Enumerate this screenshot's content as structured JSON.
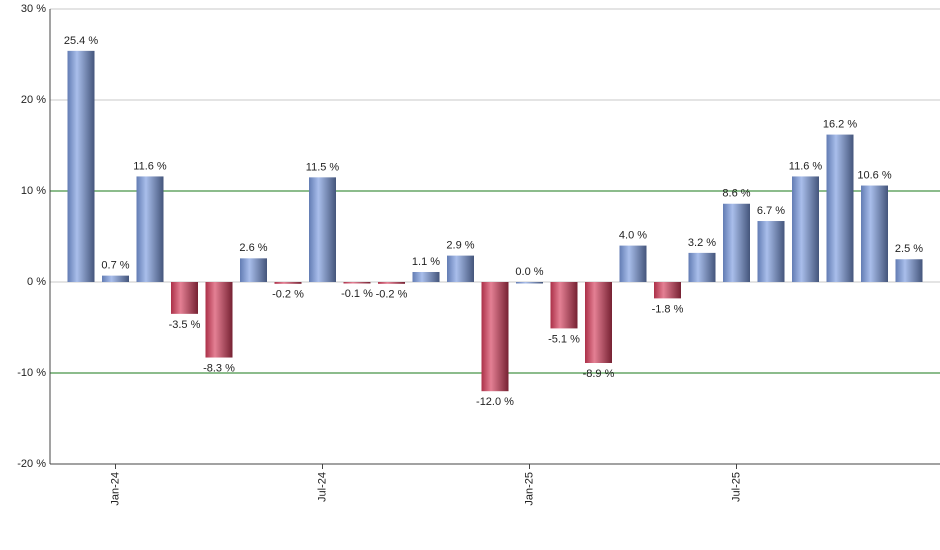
{
  "chart_data": {
    "type": "bar",
    "categories": [
      null,
      "Jan-24",
      null,
      null,
      null,
      null,
      null,
      "Jul-24",
      null,
      null,
      null,
      null,
      null,
      "Jan-25",
      null,
      null,
      null,
      null,
      null,
      "Jul-25",
      null,
      null,
      null,
      null,
      null
    ],
    "values": [
      25.4,
      0.7,
      11.6,
      -3.5,
      -8.3,
      2.6,
      -0.2,
      11.5,
      -0.1,
      -0.2,
      1.1,
      2.9,
      -12.0,
      0.0,
      -5.1,
      -8.9,
      4.0,
      -1.8,
      3.2,
      8.6,
      6.7,
      11.6,
      16.2,
      10.6,
      2.5
    ],
    "value_labels": [
      "25.4 %",
      "0.7 %",
      "11.6 %",
      "-3.5 %",
      "-8.3 %",
      "2.6 %",
      "-0.2 %",
      "11.5 %",
      "-0.1 %",
      "-0.2 %",
      "1.1 %",
      "2.9 %",
      "-12.0 %",
      "0.0 %",
      "-5.1 %",
      "-8.9 %",
      "4.0 %",
      "-1.8 %",
      "3.2 %",
      "8.6 %",
      "6.7 %",
      "11.6 %",
      "16.2 %",
      "10.6 %",
      "2.5 %"
    ],
    "positive_color": "#7b9be0",
    "negative_color": "#d63c5a",
    "ylim": [
      -20,
      30
    ],
    "yticks": [
      {
        "value": -20,
        "label": "-20 %"
      },
      {
        "value": -10,
        "label": "-10 %"
      },
      {
        "value": 0,
        "label": "0 %"
      },
      {
        "value": 10,
        "label": "10 %"
      },
      {
        "value": 20,
        "label": "20 %"
      },
      {
        "value": 30,
        "label": "30 %"
      }
    ],
    "grid": true,
    "grid_color": "#c8c8c8",
    "reference_lines": [
      10,
      -10
    ],
    "reference_color": "#1a7a1a"
  }
}
